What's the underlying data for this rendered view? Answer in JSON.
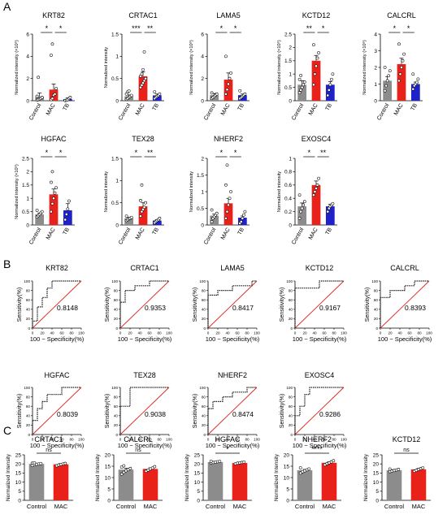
{
  "figure": {
    "panel_labels": [
      "A",
      "B",
      "C"
    ]
  },
  "colors": {
    "control": "#8c8c8c",
    "mac": "#e8211b",
    "tb": "#1f22c8",
    "roc_curve": "#222222",
    "reference": "#e0241b",
    "axis": "#000000"
  },
  "strings": {
    "control": "Control",
    "mac": "MAC",
    "tb": "TB",
    "roc_xlabel": "100 − Specificity(%)",
    "roc_ylabel": "Sensitivity(%)",
    "c_ylabel": "Normalized Intensity"
  },
  "chart_data": [
    {
      "panel": "A",
      "type": "bar",
      "title": "KRT82",
      "ylabel": "Normalized intensity (×10⁶)",
      "categories": [
        "Control",
        "MAC",
        "TB"
      ],
      "ylim": [
        0,
        6
      ],
      "yticks": [
        0,
        2,
        4,
        6
      ],
      "values": [
        0.35,
        1.0,
        0.15
      ],
      "errors": [
        0.35,
        0.5,
        0.1
      ],
      "points": [
        [
          0.05,
          0.1,
          0.15,
          0.2,
          0.3,
          0.4,
          2.1
        ],
        [
          0.1,
          0.2,
          0.5,
          0.6,
          1.1,
          4.1,
          5.1
        ],
        [
          0.02,
          0.05,
          0.1,
          0.2,
          0.3
        ]
      ],
      "significance": [
        "*",
        "*"
      ]
    },
    {
      "panel": "A",
      "type": "bar",
      "title": "CRTAC1",
      "ylabel": "Normalized intensity",
      "categories": [
        "Control",
        "MAC",
        "TB"
      ],
      "ylim": [
        0,
        1.5
      ],
      "yticks": [
        0.0,
        0.5,
        1.0,
        1.5
      ],
      "values": [
        0.1,
        0.55,
        0.12
      ],
      "errors": [
        0.03,
        0.1,
        0.03
      ],
      "points": [
        [
          0.03,
          0.05,
          0.08,
          0.1,
          0.12,
          0.15,
          0.2,
          0.22
        ],
        [
          0.3,
          0.35,
          0.4,
          0.45,
          0.5,
          0.55,
          0.6,
          0.7,
          1.1
        ],
        [
          0.05,
          0.08,
          0.1,
          0.12,
          0.15,
          0.2
        ]
      ],
      "significance": [
        "***",
        "**"
      ]
    },
    {
      "panel": "A",
      "type": "bar",
      "title": "LAMA5",
      "ylabel": "Normalized intensity (×10⁶)",
      "categories": [
        "Control",
        "MAC",
        "TB"
      ],
      "ylim": [
        0,
        6
      ],
      "yticks": [
        0,
        2,
        4,
        6
      ],
      "values": [
        0.5,
        1.9,
        0.5
      ],
      "errors": [
        0.15,
        0.6,
        0.1
      ],
      "points": [
        [
          0.2,
          0.3,
          0.4,
          0.5,
          0.6,
          0.7
        ],
        [
          0.6,
          1.0,
          1.5,
          2.0,
          2.5,
          4.0
        ],
        [
          0.2,
          0.3,
          0.4,
          0.5,
          0.6,
          0.9
        ]
      ],
      "significance": [
        "*",
        "*"
      ]
    },
    {
      "panel": "A",
      "type": "bar",
      "title": "KCTD12",
      "ylabel": "Normalized intensity (×10⁶)",
      "categories": [
        "Control",
        "MAC",
        "TB"
      ],
      "ylim": [
        0,
        2.5
      ],
      "yticks": [
        0.0,
        0.5,
        1.0,
        1.5,
        2.0,
        2.5
      ],
      "values": [
        0.6,
        1.5,
        0.6
      ],
      "errors": [
        0.15,
        0.2,
        0.12
      ],
      "points": [
        [
          0.3,
          0.4,
          0.5,
          0.6,
          0.7,
          0.8,
          0.95
        ],
        [
          0.6,
          1.0,
          1.3,
          1.6,
          1.8,
          2.1
        ],
        [
          0.2,
          0.4,
          0.6,
          0.8,
          1.0
        ]
      ],
      "significance": [
        "**",
        "*"
      ]
    },
    {
      "panel": "A",
      "type": "bar",
      "title": "CALCRL",
      "ylabel": "Normalized intensity (×10⁶)",
      "categories": [
        "Control",
        "MAC",
        "TB"
      ],
      "ylim": [
        0,
        4
      ],
      "yticks": [
        0,
        1,
        2,
        3,
        4
      ],
      "values": [
        1.2,
        2.2,
        1.0
      ],
      "errors": [
        0.25,
        0.35,
        0.12
      ],
      "points": [
        [
          0.6,
          0.9,
          1.2,
          1.5,
          1.8,
          2.0
        ],
        [
          1.2,
          1.6,
          2.0,
          2.4,
          2.8,
          3.4
        ],
        [
          0.7,
          0.9,
          1.0,
          1.1,
          1.3,
          1.6
        ]
      ],
      "significance": [
        "*",
        "*"
      ]
    },
    {
      "panel": "A",
      "type": "bar",
      "title": "HGFAC",
      "ylabel": "Normalized intensity (×10⁶)",
      "categories": [
        "Control",
        "MAC",
        "TB"
      ],
      "ylim": [
        0,
        2.5
      ],
      "yticks": [
        0.0,
        0.5,
        1.0,
        1.5,
        2.0,
        2.5
      ],
      "values": [
        0.4,
        1.15,
        0.55
      ],
      "errors": [
        0.05,
        0.2,
        0.25
      ],
      "points": [
        [
          0.3,
          0.35,
          0.4,
          0.45,
          0.5,
          0.55
        ],
        [
          0.5,
          0.8,
          1.0,
          1.2,
          1.4,
          1.6,
          2.0
        ],
        [
          0.2,
          0.4,
          0.6,
          0.9
        ]
      ],
      "significance": [
        "*",
        "*"
      ]
    },
    {
      "panel": "A",
      "type": "bar",
      "title": "TEX28",
      "ylabel": "Normalized intensity",
      "categories": [
        "Control",
        "MAC",
        "TB"
      ],
      "ylim": [
        0,
        1.5
      ],
      "yticks": [
        0.0,
        0.5,
        1.0,
        1.5
      ],
      "values": [
        0.15,
        0.42,
        0.1
      ],
      "errors": [
        0.02,
        0.08,
        0.02
      ],
      "points": [
        [
          0.1,
          0.12,
          0.14,
          0.15,
          0.17,
          0.2
        ],
        [
          0.2,
          0.3,
          0.35,
          0.4,
          0.5,
          0.55,
          0.9
        ],
        [
          0.05,
          0.08,
          0.1,
          0.12,
          0.15
        ]
      ],
      "significance": [
        "*",
        "**"
      ]
    },
    {
      "panel": "A",
      "type": "bar",
      "title": "NHERF2",
      "ylabel": "Normalized intensity",
      "categories": [
        "Control",
        "MAC",
        "TB"
      ],
      "ylim": [
        0,
        2.0
      ],
      "yticks": [
        0.0,
        0.5,
        1.0,
        1.5,
        2.0
      ],
      "values": [
        0.28,
        0.65,
        0.22
      ],
      "errors": [
        0.05,
        0.15,
        0.05
      ],
      "points": [
        [
          0.1,
          0.2,
          0.25,
          0.3,
          0.35,
          0.45
        ],
        [
          0.2,
          0.4,
          0.6,
          0.8,
          1.0,
          1.2,
          1.8
        ],
        [
          0.05,
          0.1,
          0.2,
          0.3,
          0.4
        ]
      ],
      "significance": [
        "*",
        "*"
      ]
    },
    {
      "panel": "A",
      "type": "bar",
      "title": "EXOSC4",
      "ylabel": "Normalized intensity",
      "categories": [
        "Control",
        "MAC",
        "TB"
      ],
      "ylim": [
        0,
        1.0
      ],
      "yticks": [
        0.0,
        0.2,
        0.4,
        0.6,
        0.8,
        1.0
      ],
      "values": [
        0.28,
        0.6,
        0.28
      ],
      "errors": [
        0.05,
        0.06,
        0.03
      ],
      "points": [
        [
          0.1,
          0.2,
          0.25,
          0.3,
          0.35,
          0.45
        ],
        [
          0.45,
          0.5,
          0.55,
          0.6,
          0.7
        ],
        [
          0.2,
          0.25,
          0.28,
          0.3,
          0.32
        ]
      ],
      "significance": [
        "*",
        "**"
      ]
    },
    {
      "panel": "B",
      "type": "line",
      "title": "KRT82",
      "auc": "0.8148",
      "xlim": [
        0,
        100
      ],
      "ylim": [
        0,
        100
      ],
      "ticks": [
        0,
        20,
        40,
        60,
        80,
        100
      ],
      "x": [
        0,
        0,
        10,
        10,
        20,
        20,
        30,
        30,
        40,
        40,
        100
      ],
      "y": [
        0,
        15,
        15,
        45,
        45,
        65,
        65,
        85,
        85,
        100,
        100
      ]
    },
    {
      "panel": "B",
      "type": "line",
      "title": "CRTAC1",
      "auc": "0.9353",
      "xlim": [
        0,
        100
      ],
      "ylim": [
        0,
        100
      ],
      "ticks": [
        0,
        20,
        40,
        60,
        80,
        100
      ],
      "x": [
        0,
        0,
        10,
        10,
        30,
        30,
        60,
        60,
        100
      ],
      "y": [
        0,
        55,
        55,
        80,
        80,
        90,
        90,
        100,
        100
      ]
    },
    {
      "panel": "B",
      "type": "line",
      "title": "LAMA5",
      "auc": "0.8417",
      "xlim": [
        0,
        100
      ],
      "ylim": [
        0,
        100
      ],
      "ticks": [
        0,
        20,
        40,
        60,
        80,
        100
      ],
      "x": [
        0,
        0,
        20,
        20,
        50,
        50,
        90,
        90,
        100
      ],
      "y": [
        0,
        70,
        70,
        80,
        80,
        90,
        90,
        100,
        100
      ]
    },
    {
      "panel": "B",
      "type": "line",
      "title": "KCTD12",
      "auc": "0.9167",
      "xlim": [
        0,
        100
      ],
      "ylim": [
        0,
        100
      ],
      "ticks": [
        0,
        20,
        40,
        60,
        80,
        100
      ],
      "x": [
        0,
        0,
        50,
        50,
        100
      ],
      "y": [
        0,
        85,
        85,
        100,
        100
      ]
    },
    {
      "panel": "B",
      "type": "line",
      "title": "CALCRL",
      "auc": "0.8393",
      "xlim": [
        0,
        100
      ],
      "ylim": [
        0,
        100
      ],
      "ticks": [
        0,
        20,
        40,
        60,
        80,
        100
      ],
      "x": [
        0,
        0,
        20,
        20,
        50,
        50,
        70,
        70,
        100
      ],
      "y": [
        0,
        65,
        65,
        80,
        80,
        90,
        90,
        100,
        100
      ]
    },
    {
      "panel": "B",
      "type": "line",
      "title": "HGFAC",
      "auc": "0.8039",
      "xlim": [
        0,
        100
      ],
      "ylim": [
        0,
        100
      ],
      "ticks": [
        0,
        20,
        40,
        60,
        80,
        100
      ],
      "x": [
        0,
        0,
        10,
        10,
        20,
        20,
        30,
        30,
        60,
        60,
        100
      ],
      "y": [
        0,
        30,
        30,
        55,
        55,
        70,
        70,
        85,
        85,
        100,
        100
      ]
    },
    {
      "panel": "B",
      "type": "line",
      "title": "TEX28",
      "auc": "0.9038",
      "xlim": [
        0,
        100
      ],
      "ylim": [
        0,
        100
      ],
      "ticks": [
        0,
        20,
        40,
        60,
        80,
        100
      ],
      "x": [
        0,
        0,
        20,
        20,
        100
      ],
      "y": [
        0,
        60,
        60,
        100,
        100
      ]
    },
    {
      "panel": "B",
      "type": "line",
      "title": "NHERF2",
      "auc": "0.8474",
      "xlim": [
        0,
        100
      ],
      "ylim": [
        0,
        100
      ],
      "ticks": [
        0,
        20,
        40,
        60,
        80,
        100
      ],
      "x": [
        0,
        0,
        10,
        10,
        30,
        30,
        50,
        50,
        80,
        80,
        100
      ],
      "y": [
        0,
        55,
        55,
        70,
        70,
        80,
        80,
        90,
        90,
        100,
        100
      ]
    },
    {
      "panel": "B",
      "type": "line",
      "title": "EXOSC4",
      "auc": "0.9286",
      "xlim": [
        0,
        100
      ],
      "ylim": [
        0,
        100
      ],
      "ticks": [
        0,
        20,
        40,
        60,
        80,
        100
      ],
      "x": [
        0,
        0,
        10,
        10,
        20,
        20,
        30,
        30,
        100
      ],
      "y": [
        0,
        40,
        40,
        60,
        60,
        85,
        85,
        100,
        100
      ]
    },
    {
      "panel": "C",
      "type": "bar",
      "title": "CRTAC1",
      "ylabel": "Normalized Intensity",
      "categories": [
        "Control",
        "MAC"
      ],
      "ylim": [
        0,
        25
      ],
      "yticks": [
        0,
        5,
        10,
        15,
        20,
        25
      ],
      "values": [
        20.0,
        19.8
      ],
      "errors": [
        0.3,
        0.4
      ],
      "points": [
        [
          19.2,
          19.6,
          19.8,
          20.0,
          20.2,
          20.4,
          20.6
        ],
        [
          19.0,
          19.4,
          19.7,
          20.0,
          20.3
        ]
      ],
      "significance": [
        "ns"
      ]
    },
    {
      "panel": "C",
      "type": "bar",
      "title": "CALCRL",
      "ylabel": "Normalized Intensity",
      "categories": [
        "Control",
        "MAC"
      ],
      "ylim": [
        0,
        20
      ],
      "yticks": [
        0,
        5,
        10,
        15,
        20
      ],
      "values": [
        13.5,
        13.8
      ],
      "errors": [
        0.6,
        0.5
      ],
      "points": [
        [
          11.5,
          12.3,
          13.0,
          13.5,
          14.0,
          14.6,
          15.2
        ],
        [
          12.8,
          13.3,
          13.8,
          14.2,
          14.8
        ]
      ],
      "significance": [
        "ns"
      ]
    },
    {
      "panel": "C",
      "type": "bar",
      "title": "HGFAC",
      "ylabel": "Normalized Intensity",
      "categories": [
        "Control",
        "MAC"
      ],
      "ylim": [
        0,
        25
      ],
      "yticks": [
        0,
        5,
        10,
        15,
        20,
        25
      ],
      "values": [
        21.0,
        20.5
      ],
      "errors": [
        0.3,
        0.3
      ],
      "points": [
        [
          20.6,
          20.8,
          21.0,
          21.2,
          21.4,
          21.5
        ],
        [
          20.1,
          20.4,
          20.6,
          20.8,
          21.0
        ]
      ],
      "significance": [
        "*"
      ]
    },
    {
      "panel": "C",
      "type": "bar",
      "title": "NHERF2",
      "ylabel": "Normalized Intensity",
      "categories": [
        "Control",
        "MAC"
      ],
      "ylim": [
        0,
        20
      ],
      "yticks": [
        0,
        5,
        10,
        15,
        20
      ],
      "values": [
        13.2,
        16.5
      ],
      "errors": [
        0.4,
        0.4
      ],
      "points": [
        [
          12.0,
          12.6,
          13.0,
          13.4,
          13.8,
          14.3
        ],
        [
          15.6,
          16.1,
          16.5,
          16.9,
          17.4
        ]
      ],
      "significance": [
        "****"
      ]
    },
    {
      "panel": "C",
      "type": "bar",
      "title": "KCTD12",
      "ylabel": "Normalized Intensity",
      "categories": [
        "Control",
        "MAC"
      ],
      "ylim": [
        0,
        25
      ],
      "yticks": [
        0,
        5,
        10,
        15,
        20,
        25
      ],
      "values": [
        16.5,
        17.0
      ],
      "errors": [
        0.4,
        0.5
      ],
      "points": [
        [
          15.8,
          16.1,
          16.4,
          16.7,
          17.0,
          17.2
        ],
        [
          16.0,
          16.5,
          17.0,
          17.4,
          17.8
        ]
      ],
      "significance": [
        "ns"
      ]
    }
  ]
}
